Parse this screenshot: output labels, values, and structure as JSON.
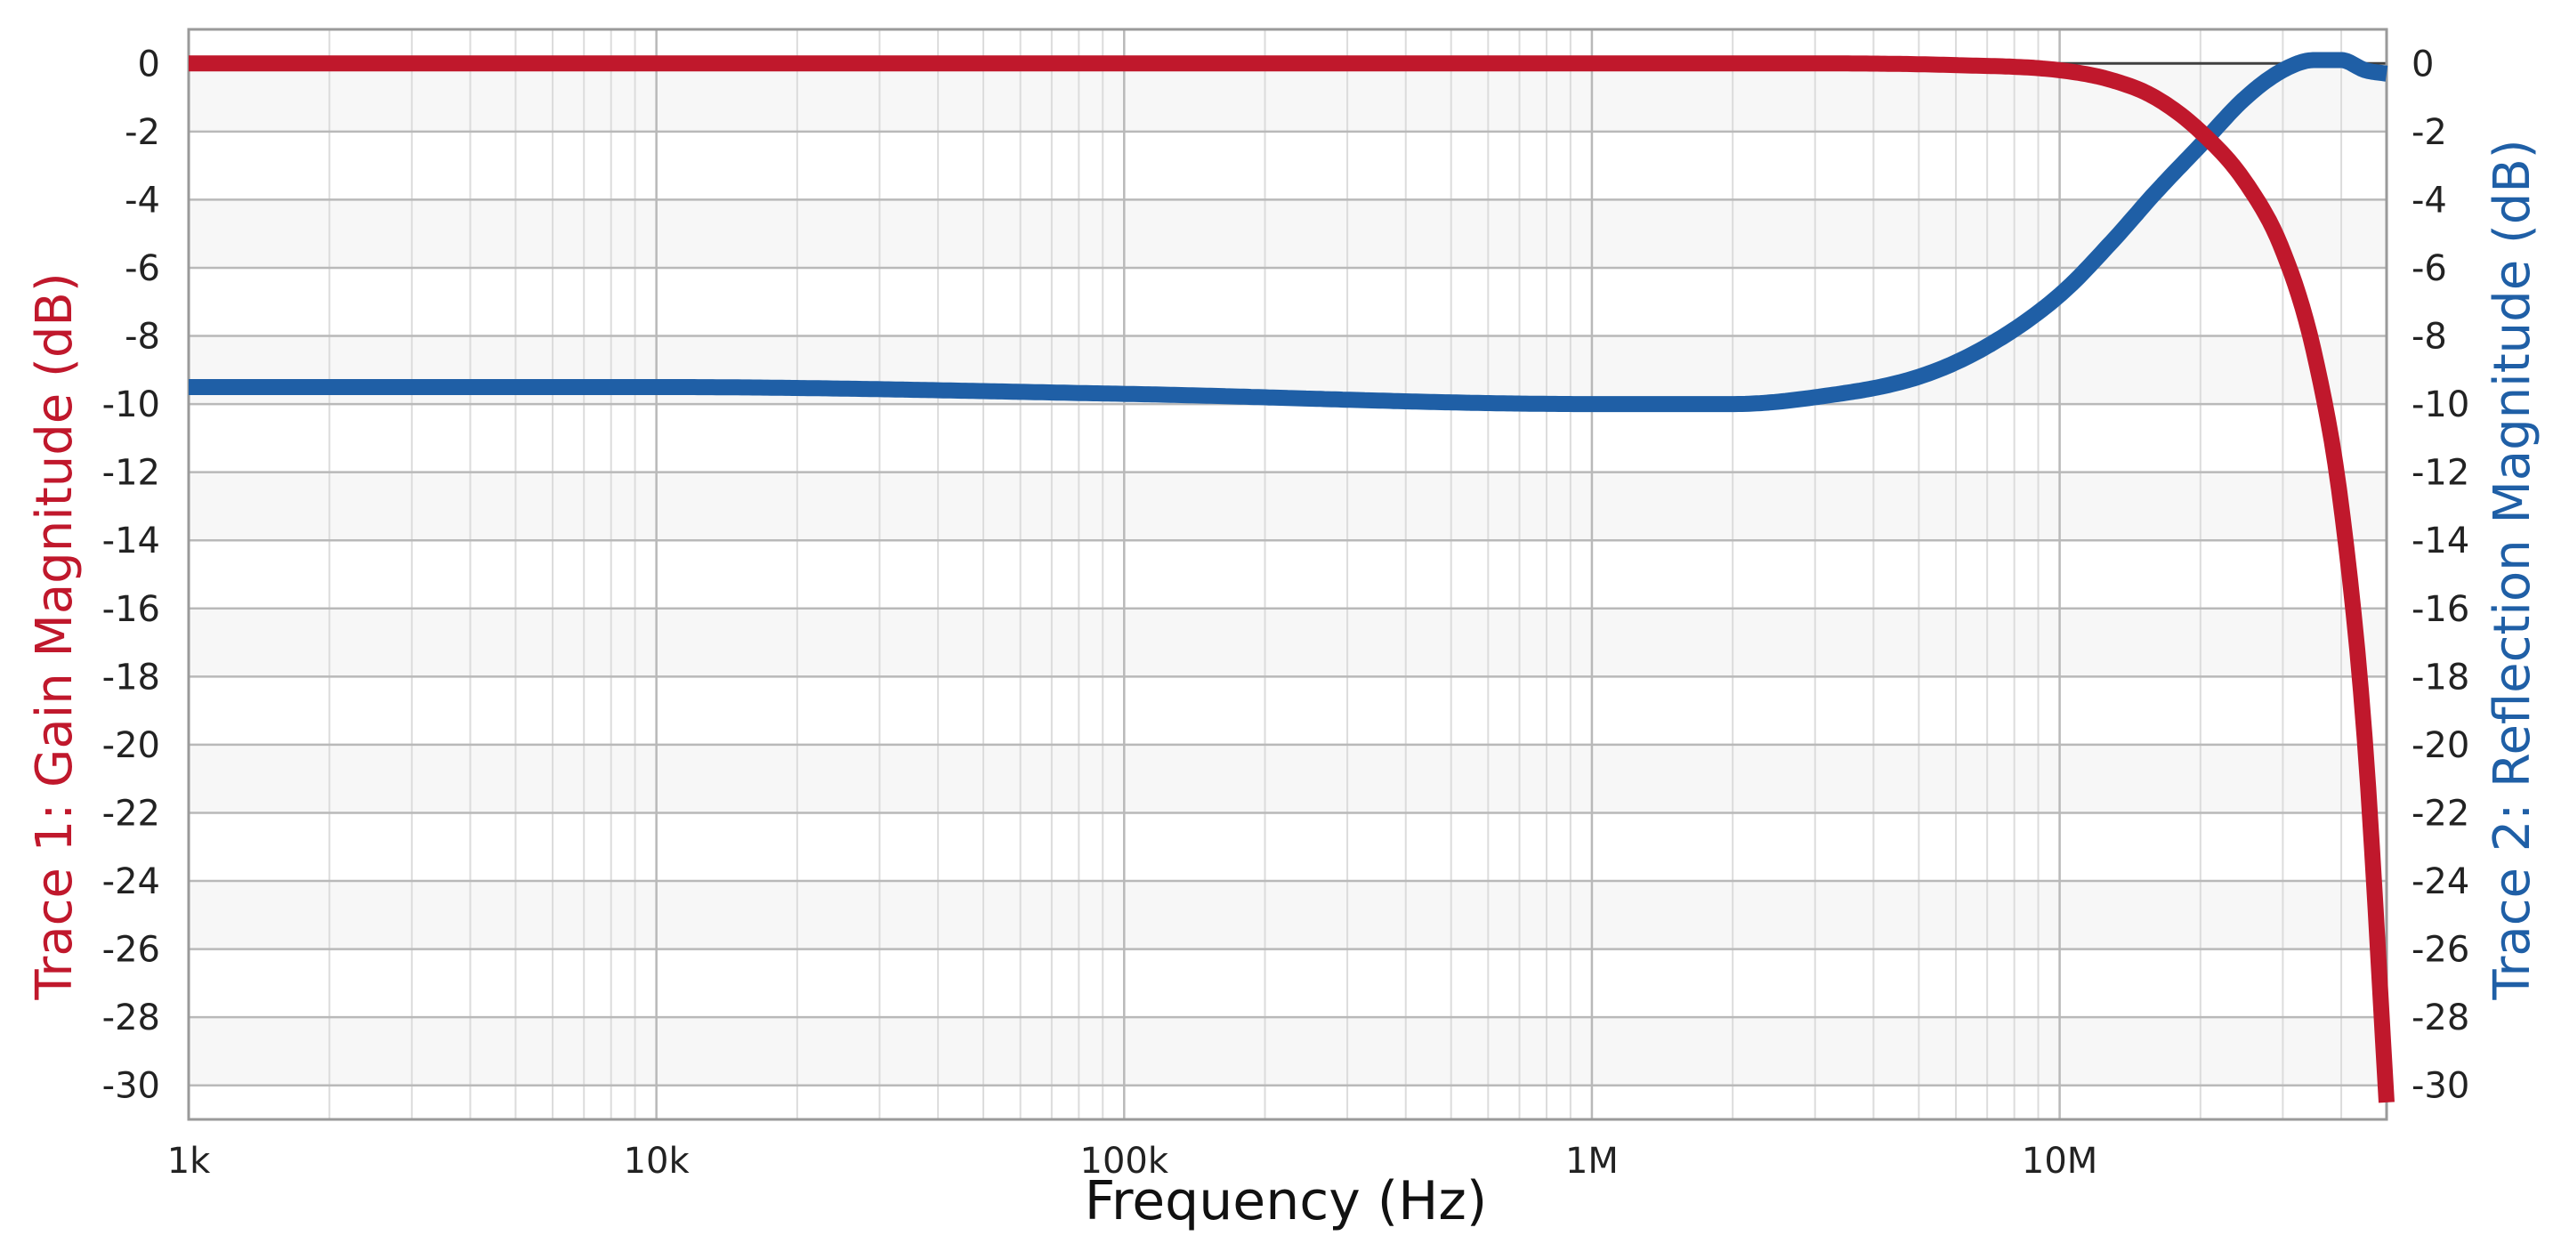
{
  "chart_data": {
    "type": "line",
    "title": "",
    "xlabel": "Frequency (Hz)",
    "ylabel_left": "Trace 1: Gain Magnitude (dB)",
    "ylabel_right": "Trace 2: Reflection Magnitude (dB)",
    "x_scale": "log",
    "xlim": [
      1000,
      50000000
    ],
    "ylim": [
      -31,
      1
    ],
    "grid": true,
    "legend": "none",
    "x_ticks": [
      {
        "value": 1000,
        "label": "1k"
      },
      {
        "value": 10000,
        "label": "10k"
      },
      {
        "value": 100000,
        "label": "100k"
      },
      {
        "value": 1000000,
        "label": "1M"
      },
      {
        "value": 10000000,
        "label": "10M"
      }
    ],
    "y_ticks_left": [
      "0",
      "-2",
      "-4",
      "-6",
      "-8",
      "-10",
      "-12",
      "-14",
      "-16",
      "-18",
      "-20",
      "-22",
      "-24",
      "-26",
      "-28",
      "-30"
    ],
    "y_ticks_right": [
      "0",
      "-2",
      "-4",
      "-6",
      "-8",
      "-10",
      "-12",
      "-14",
      "-16",
      "-18",
      "-20",
      "-22",
      "-24",
      "-26",
      "-28",
      "-30"
    ],
    "y_tick_values": [
      0,
      -2,
      -4,
      -6,
      -8,
      -10,
      -12,
      -14,
      -16,
      -18,
      -20,
      -22,
      -24,
      -26,
      -28,
      -30
    ],
    "colors": {
      "trace1": "#c0182c",
      "trace2": "#1f5fa6",
      "grid_major": "#b9b9b9",
      "grid_minor": "#dcdcdc",
      "plot_band": "#f7f7f7",
      "axis": "#9a9a9a",
      "zero_line": "#404040"
    },
    "series": [
      {
        "axis": "left",
        "x": [
          1000,
          10000,
          100000,
          1000000,
          3000000,
          6000000,
          10000000,
          13000000,
          16000000,
          20000000,
          25000000,
          30000000,
          35000000,
          40000000,
          45000000,
          50000000
        ],
        "y": [
          0,
          0,
          0,
          0,
          0,
          -0.05,
          -0.2,
          -0.5,
          -1.0,
          -2.0,
          -3.5,
          -5.5,
          -8.5,
          -13,
          -20,
          -30.5
        ]
      },
      {
        "axis": "right",
        "x": [
          1000,
          10000,
          100000,
          1000000,
          2000000,
          3000000,
          5000000,
          7000000,
          10000000,
          13000000,
          16000000,
          20000000,
          25000000,
          30000000,
          35000000,
          40000000,
          45000000,
          50000000
        ],
        "y": [
          -9.5,
          -9.5,
          -9.7,
          -10,
          -10,
          -9.8,
          -9.2,
          -8.3,
          -6.8,
          -5.2,
          -3.8,
          -2.4,
          -1.0,
          -0.2,
          0.1,
          0.1,
          -0.2,
          -0.3
        ]
      }
    ]
  }
}
